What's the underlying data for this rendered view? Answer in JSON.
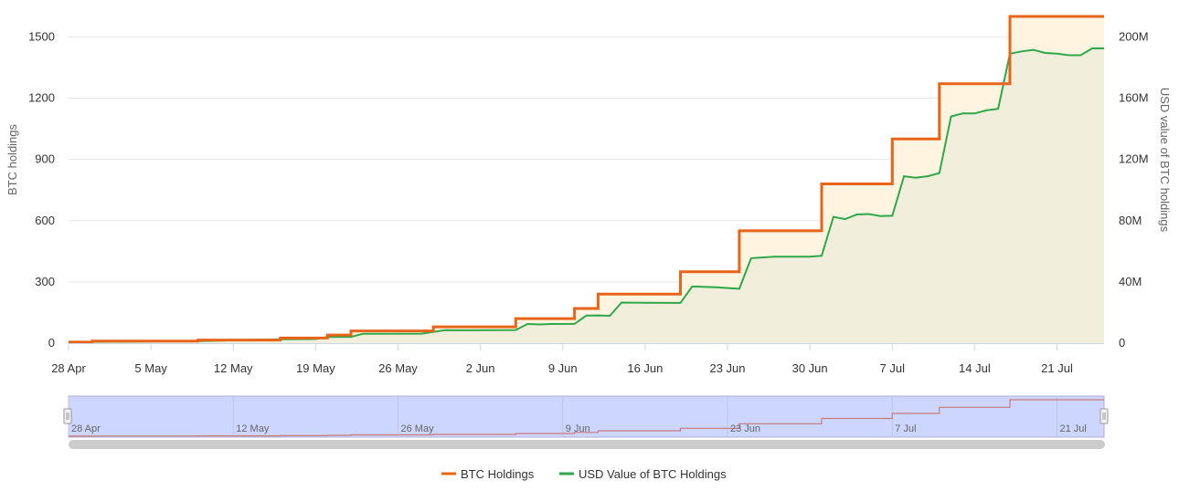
{
  "colors": {
    "btc": "#e8641b",
    "btc_fill": "#fff4e0",
    "usd": "#2ea84a",
    "usd_fill": "#f1efdc",
    "grid": "#e6e6e6",
    "navigator_mask": "#ccd6ff",
    "navigator_line": "#c87a7a",
    "scrollbar": "#cccccc"
  },
  "chart_data": {
    "type": "line",
    "grid": true,
    "x_tick_labels": [
      "28 Apr",
      "5 May",
      "12 May",
      "19 May",
      "26 May",
      "2 Jun",
      "9 Jun",
      "16 Jun",
      "23 Jun",
      "30 Jun",
      "7 Jul",
      "14 Jul",
      "21 Jul"
    ],
    "x_range": [
      "2025-04-28",
      "2025-07-25"
    ],
    "left_axis": {
      "title": "BTC holdings",
      "ticks": [
        "0",
        "300",
        "600",
        "900",
        "1200",
        "1500"
      ],
      "range": [
        0,
        1500
      ]
    },
    "right_axis": {
      "title": "USD value of BTC holdings",
      "ticks": [
        "0",
        "40M",
        "80M",
        "120M",
        "160M",
        "200M"
      ],
      "range": [
        0,
        200000000
      ]
    },
    "series": [
      {
        "name": "BTC Holdings",
        "axis": "left",
        "step": true,
        "points": [
          [
            "2025-04-28",
            5
          ],
          [
            "2025-04-30",
            10
          ],
          [
            "2025-05-09",
            15
          ],
          [
            "2025-05-16",
            25
          ],
          [
            "2025-05-20",
            40
          ],
          [
            "2025-05-22",
            60
          ],
          [
            "2025-05-29",
            80
          ],
          [
            "2025-06-05",
            120
          ],
          [
            "2025-06-10",
            170
          ],
          [
            "2025-06-12",
            240
          ],
          [
            "2025-06-19",
            350
          ],
          [
            "2025-06-24",
            550
          ],
          [
            "2025-07-01",
            780
          ],
          [
            "2025-07-07",
            1000
          ],
          [
            "2025-07-11",
            1270
          ],
          [
            "2025-07-17",
            1600
          ],
          [
            "2025-07-25",
            1600
          ]
        ]
      },
      {
        "name": "USD Value of BTC Holdings",
        "axis": "right",
        "step": false,
        "points": [
          [
            "2025-04-28",
            500000
          ],
          [
            "2025-04-30",
            900000
          ],
          [
            "2025-05-09",
            1400000
          ],
          [
            "2025-05-16",
            2500000
          ],
          [
            "2025-05-19",
            2700000
          ],
          [
            "2025-05-20",
            4000000
          ],
          [
            "2025-05-22",
            4100000
          ],
          [
            "2025-05-23",
            6100000
          ],
          [
            "2025-05-28",
            6200000
          ],
          [
            "2025-05-30",
            8500000
          ],
          [
            "2025-06-01",
            8400000
          ],
          [
            "2025-06-05",
            8600000
          ],
          [
            "2025-06-06",
            12500000
          ],
          [
            "2025-06-07",
            12200000
          ],
          [
            "2025-06-08",
            12500000
          ],
          [
            "2025-06-10",
            12600000
          ],
          [
            "2025-06-11",
            18000000
          ],
          [
            "2025-06-12",
            18100000
          ],
          [
            "2025-06-13",
            17900000
          ],
          [
            "2025-06-14",
            26500000
          ],
          [
            "2025-06-16",
            26400000
          ],
          [
            "2025-06-19",
            26300000
          ],
          [
            "2025-06-20",
            37000000
          ],
          [
            "2025-06-22",
            36500000
          ],
          [
            "2025-06-24",
            35500000
          ],
          [
            "2025-06-25",
            55500000
          ],
          [
            "2025-06-27",
            56500000
          ],
          [
            "2025-06-30",
            56500000
          ],
          [
            "2025-07-01",
            57000000
          ],
          [
            "2025-07-02",
            82500000
          ],
          [
            "2025-07-03",
            81000000
          ],
          [
            "2025-07-04",
            84000000
          ],
          [
            "2025-07-05",
            84300000
          ],
          [
            "2025-07-06",
            83000000
          ],
          [
            "2025-07-07",
            83200000
          ],
          [
            "2025-07-08",
            109000000
          ],
          [
            "2025-07-09",
            108000000
          ],
          [
            "2025-07-10",
            109000000
          ],
          [
            "2025-07-11",
            111000000
          ],
          [
            "2025-07-12",
            148000000
          ],
          [
            "2025-07-13",
            150000000
          ],
          [
            "2025-07-14",
            150000000
          ],
          [
            "2025-07-15",
            152000000
          ],
          [
            "2025-07-16",
            153000000
          ],
          [
            "2025-07-17",
            189000000
          ],
          [
            "2025-07-18",
            190500000
          ],
          [
            "2025-07-19",
            191500000
          ],
          [
            "2025-07-20",
            189500000
          ],
          [
            "2025-07-21",
            189000000
          ],
          [
            "2025-07-22",
            188000000
          ],
          [
            "2025-07-23",
            188000000
          ],
          [
            "2025-07-24",
            192500000
          ],
          [
            "2025-07-25",
            192500000
          ]
        ]
      }
    ],
    "navigator": {
      "tick_labels": [
        "28 Apr",
        "12 May",
        "26 May",
        "9 Jun",
        "23 Jun",
        "7 Jul",
        "21 Jul"
      ]
    },
    "legend": {
      "placement": "bottom-center",
      "items": [
        "BTC Holdings",
        "USD Value of BTC Holdings"
      ]
    }
  }
}
